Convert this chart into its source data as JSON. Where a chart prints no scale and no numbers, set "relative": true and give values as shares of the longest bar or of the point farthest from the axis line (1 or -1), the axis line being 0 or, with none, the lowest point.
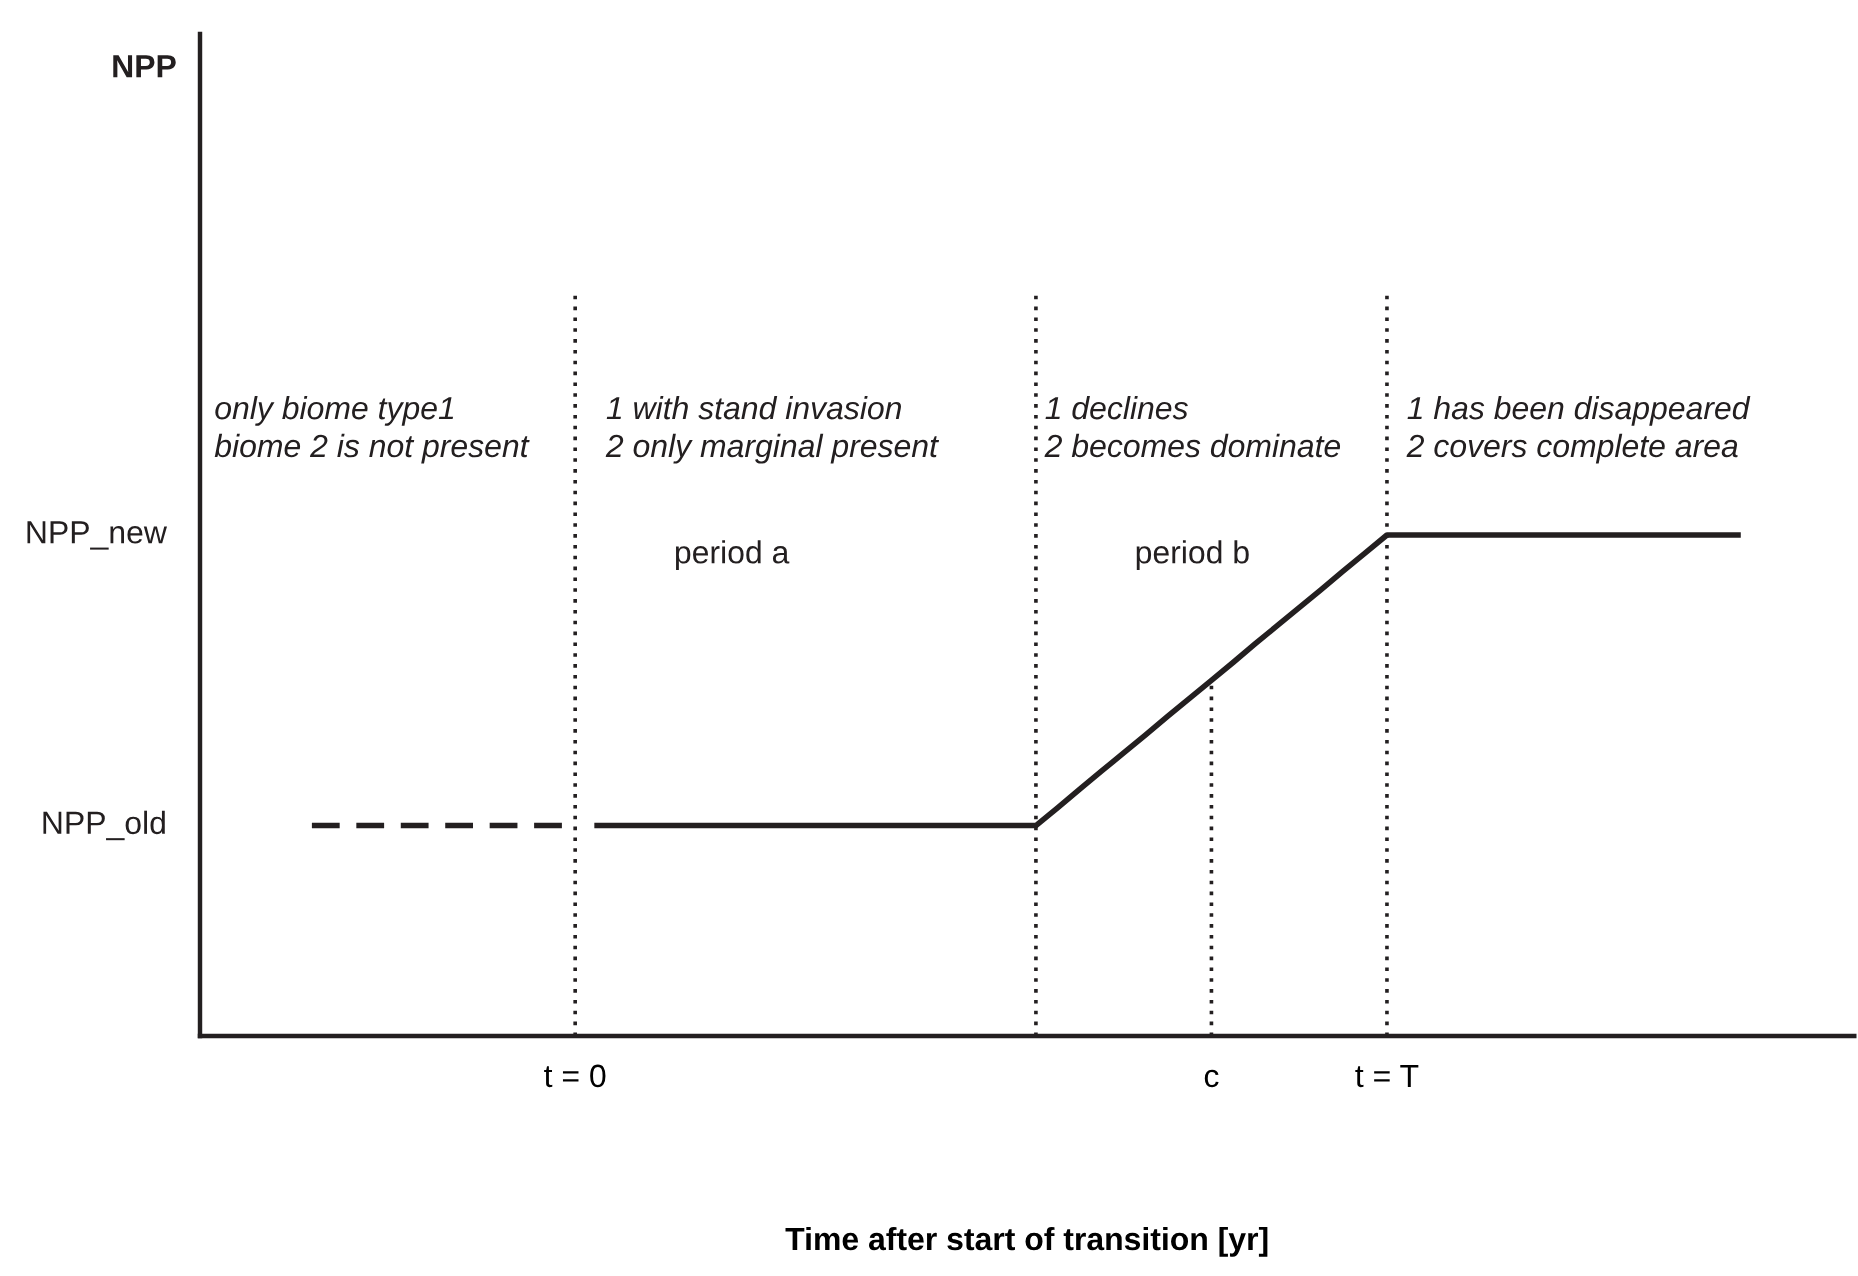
{
  "chart_data": {
    "type": "line",
    "relative": true,
    "xlabel": "Time after start of transition [yr]",
    "categories": [
      null,
      null,
      null,
      null,
      null,
      null,
      null,
      null,
      null,
      null,
      null,
      null,
      null,
      null,
      null,
      null,
      "t = 0",
      null,
      null,
      null,
      null,
      null,
      null,
      null,
      null,
      null,
      null,
      null,
      null,
      null,
      null,
      null,
      null,
      null,
      null,
      null,
      null,
      null,
      null,
      null,
      null,
      null,
      null,
      null,
      null,
      "c",
      null,
      null,
      null,
      null,
      null,
      null,
      null,
      "t = T",
      null,
      null,
      null,
      null,
      null,
      null,
      null,
      null,
      null,
      null,
      null,
      null,
      null,
      null,
      null,
      null,
      null,
      null,
      null,
      null,
      null
    ],
    "series": [
      {
        "color": "#231f20",
        "line_style": "dashed",
        "values": [
          null,
          null,
          null,
          null,
          0.42,
          0.42,
          0.42,
          0.42,
          0.42,
          0.42,
          0.42,
          0.42,
          0.42,
          0.42,
          0.42,
          0.42,
          0.42,
          null,
          null,
          null,
          null,
          null,
          null,
          null,
          null,
          null,
          null,
          null,
          null,
          null,
          null,
          null,
          null,
          null,
          null,
          null,
          null,
          null,
          null,
          null,
          null,
          null,
          null,
          null,
          null,
          null,
          null,
          null,
          null,
          null,
          null,
          null,
          null,
          null,
          null,
          null,
          null,
          null,
          null,
          null,
          null,
          null,
          null,
          null,
          null,
          null,
          null,
          null,
          null,
          null,
          null,
          null,
          null,
          null,
          null
        ]
      },
      {
        "color": "#231f20",
        "line_style": "solid",
        "values": [
          null,
          null,
          null,
          null,
          null,
          null,
          null,
          null,
          null,
          null,
          null,
          null,
          null,
          null,
          null,
          null,
          null,
          0.42,
          0.42,
          0.42,
          0.42,
          0.42,
          0.42,
          0.42,
          0.42,
          0.42,
          0.42,
          0.42,
          0.42,
          0.42,
          0.42,
          0.42,
          0.42,
          0.42,
          0.42,
          0.42,
          0.42,
          0.42,
          0.456,
          0.493,
          0.529,
          0.565,
          0.601,
          0.638,
          0.674,
          0.71,
          0.746,
          0.783,
          0.819,
          0.855,
          0.891,
          0.928,
          0.964,
          1,
          1,
          1,
          1,
          1,
          1,
          1,
          1,
          1,
          1,
          1,
          1,
          1,
          1,
          1,
          1,
          1,
          null,
          null,
          null,
          null,
          null
        ]
      }
    ],
    "ref_lines": [
      {
        "axis": "x",
        "value": "t = 0",
        "line_style": "dotted",
        "color": "#231f20"
      },
      {
        "axis": "x",
        "value": "c",
        "line_style": "dotted",
        "color": "#231f20"
      },
      {
        "axis": "x",
        "value": "t = T",
        "line_style": "dotted",
        "color": "#231f20"
      }
    ],
    "annotations": [
      "only biome type1\nbiome 2 is not present",
      "1 with stand invasion\n2 only marginal present",
      "1 declines\n2 becomes dominate",
      "1 has been disappeared\n2 covers complete area",
      "period a",
      "period b",
      "NPP_old",
      "NPP_new",
      "NPP"
    ]
  }
}
